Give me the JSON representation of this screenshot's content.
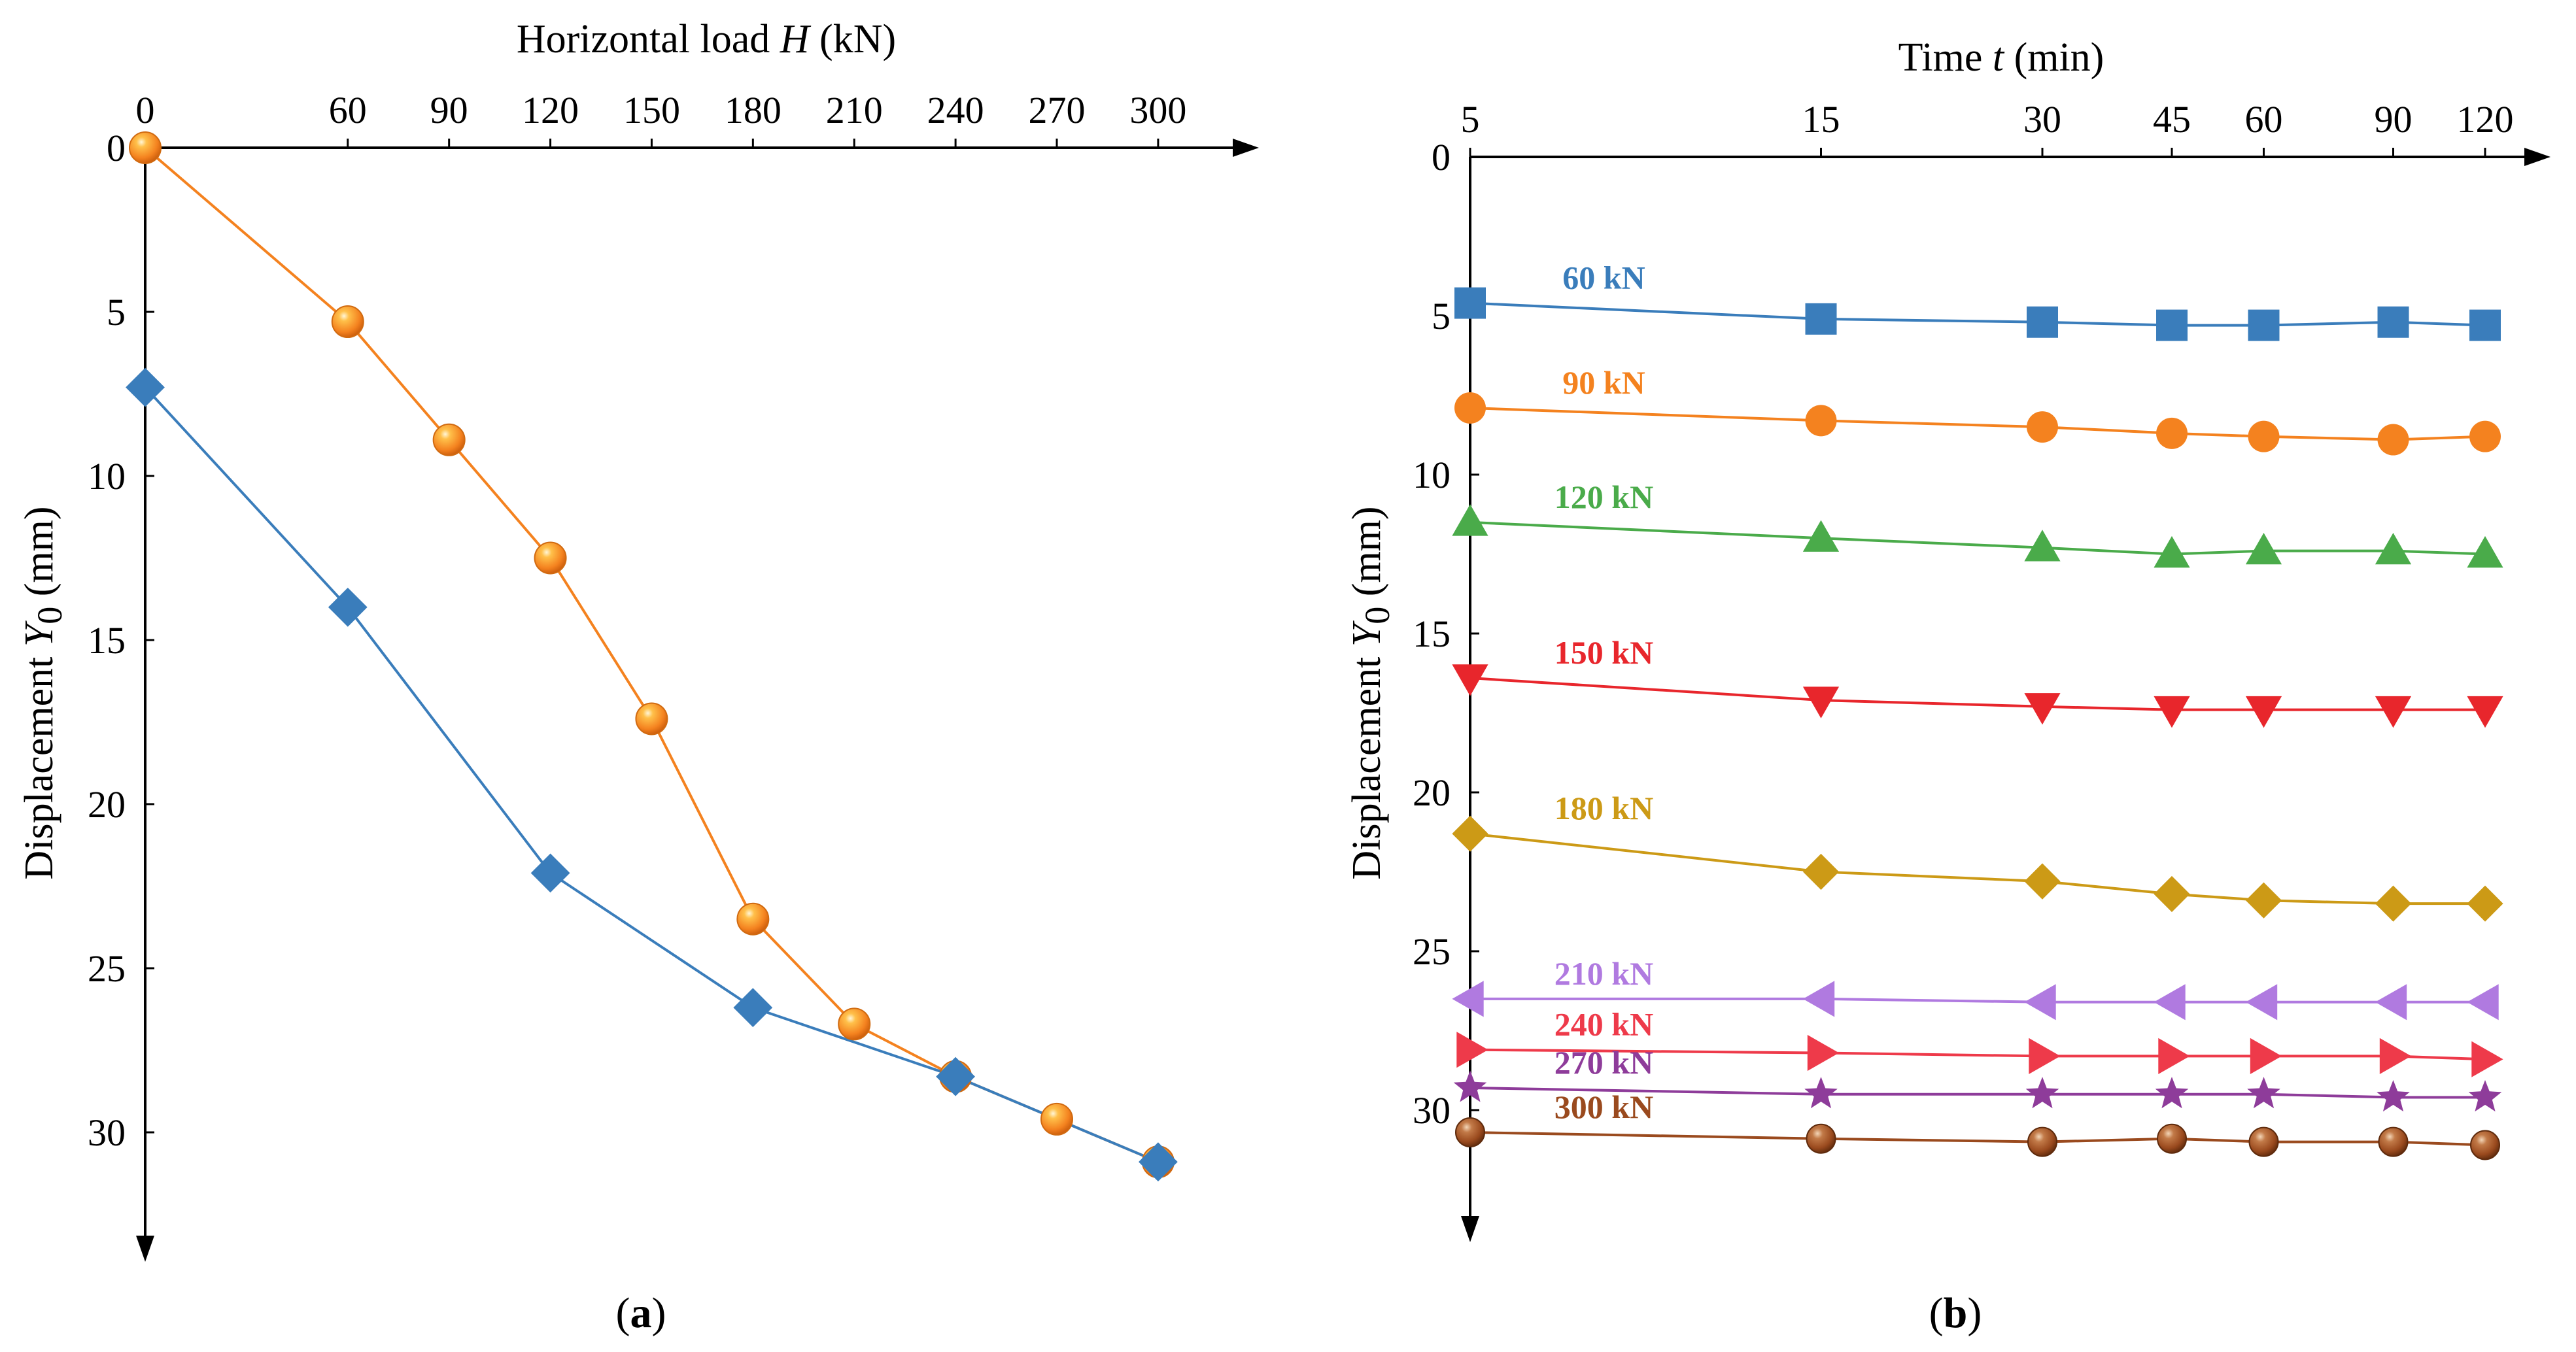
{
  "chart_data": [
    {
      "type": "line",
      "panel_label": "(a)",
      "panel_letter": "a",
      "xlabel": "Horizontal load H (kN)",
      "xlabel_parts": [
        "Horizontal load ",
        "H",
        " (kN)"
      ],
      "ylabel": "Displacement Y0 (mm)",
      "ylabel_parts": [
        "Displacement ",
        "Y",
        "0",
        " (mm)"
      ],
      "xlim": [
        0,
        330
      ],
      "ylim": [
        0,
        33
      ],
      "x_ticks": [
        0,
        60,
        90,
        120,
        150,
        180,
        210,
        240,
        270,
        300
      ],
      "y_ticks": [
        0,
        5,
        10,
        15,
        20,
        25,
        30
      ],
      "x_axis_position": "top",
      "y_inverted": true,
      "legend": "none",
      "series": [
        {
          "name": "orange",
          "color": "#f4821f",
          "marker": "sphere",
          "x": [
            0,
            60,
            90,
            120,
            150,
            180,
            210,
            240,
            270,
            300
          ],
          "values": [
            0,
            5.3,
            8.9,
            12.5,
            17.4,
            23.5,
            26.7,
            28.3,
            29.6,
            30.9
          ]
        },
        {
          "name": "blue",
          "color": "#3a7dbb",
          "marker": "diamond",
          "x": [
            0,
            60,
            120,
            180,
            240,
            300
          ],
          "values": [
            7.3,
            14.0,
            22.1,
            26.2,
            28.3,
            30.9
          ]
        }
      ]
    },
    {
      "type": "line",
      "panel_label": "(b)",
      "panel_letter": "b",
      "xlabel": "Time t (min)",
      "xlabel_parts": [
        "Time ",
        "t",
        " (min)"
      ],
      "ylabel": "Displacement Y0 (mm)",
      "ylabel_parts": [
        "Displacement ",
        "Y",
        "0",
        " (mm)"
      ],
      "x_scale": "log",
      "xlim": [
        5,
        135
      ],
      "ylim": [
        0,
        33
      ],
      "x_ticks": [
        5,
        15,
        30,
        45,
        60,
        90,
        120
      ],
      "y_ticks": [
        0,
        5,
        10,
        15,
        20,
        25,
        30
      ],
      "x_axis_position": "top",
      "y_inverted": true,
      "legend": "none",
      "x": [
        5,
        15,
        30,
        45,
        60,
        90,
        120
      ],
      "series": [
        {
          "name": "60 kN",
          "color": "#3a7dbb",
          "marker": "square",
          "values": [
            4.6,
            5.1,
            5.2,
            5.3,
            5.3,
            5.2,
            5.3
          ]
        },
        {
          "name": "90 kN",
          "color": "#f4821f",
          "marker": "circle",
          "values": [
            7.9,
            8.3,
            8.5,
            8.7,
            8.8,
            8.9,
            8.8
          ]
        },
        {
          "name": "120 kN",
          "color": "#4aab4a",
          "marker": "triangle-up",
          "values": [
            11.5,
            12.0,
            12.3,
            12.5,
            12.4,
            12.4,
            12.5
          ]
        },
        {
          "name": "150 kN",
          "color": "#e8262c",
          "marker": "triangle-down",
          "values": [
            16.4,
            17.1,
            17.3,
            17.4,
            17.4,
            17.4,
            17.4
          ]
        },
        {
          "name": "180 kN",
          "color": "#cc9a16",
          "marker": "diamond",
          "values": [
            21.3,
            22.5,
            22.8,
            23.2,
            23.4,
            23.5,
            23.5
          ]
        },
        {
          "name": "210 kN",
          "color": "#b07ae0",
          "marker": "triangle-left",
          "values": [
            26.5,
            26.5,
            26.6,
            26.6,
            26.6,
            26.6,
            26.6
          ]
        },
        {
          "name": "240 kN",
          "color": "#ee3a4a",
          "marker": "triangle-right",
          "values": [
            28.1,
            28.2,
            28.3,
            28.3,
            28.3,
            28.3,
            28.4
          ]
        },
        {
          "name": "270 kN",
          "color": "#8e3c9a",
          "marker": "star",
          "values": [
            29.3,
            29.5,
            29.5,
            29.5,
            29.5,
            29.6,
            29.6
          ]
        },
        {
          "name": "300 kN",
          "color": "#9a4a1e",
          "marker": "sphere",
          "values": [
            30.7,
            30.9,
            31.0,
            30.9,
            31.0,
            31.0,
            31.1
          ]
        }
      ]
    }
  ]
}
